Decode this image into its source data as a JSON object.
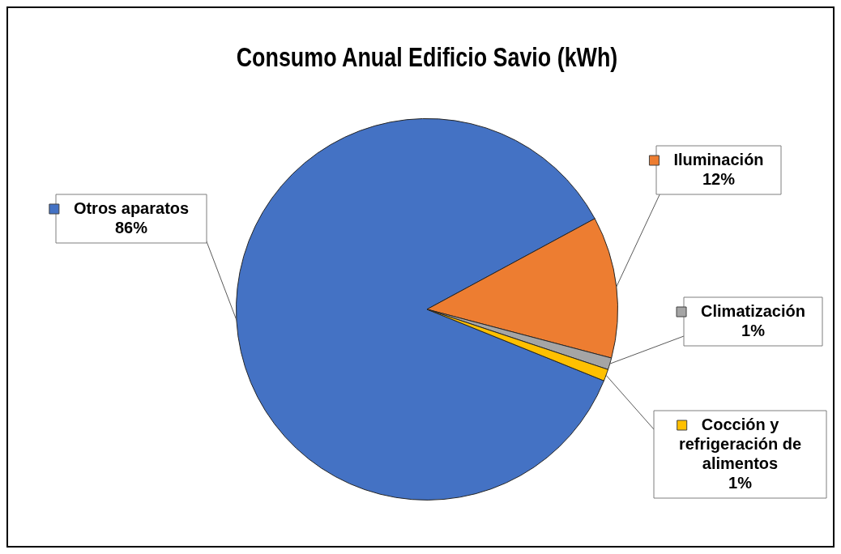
{
  "chart_data": {
    "type": "pie",
    "title": "Consumo Anual Edificio Savio (kWh)",
    "categories": [
      "Otros aparatos",
      "Iluminación",
      "Climatización",
      "Cocción y refrigeración de alimentos"
    ],
    "values": [
      86,
      12,
      1,
      1
    ],
    "value_labels": [
      "86%",
      "12%",
      "1%",
      "1%"
    ],
    "colors": [
      "#4472c4",
      "#ed7d31",
      "#a5a5a5",
      "#ffc000"
    ],
    "legend": "right"
  }
}
